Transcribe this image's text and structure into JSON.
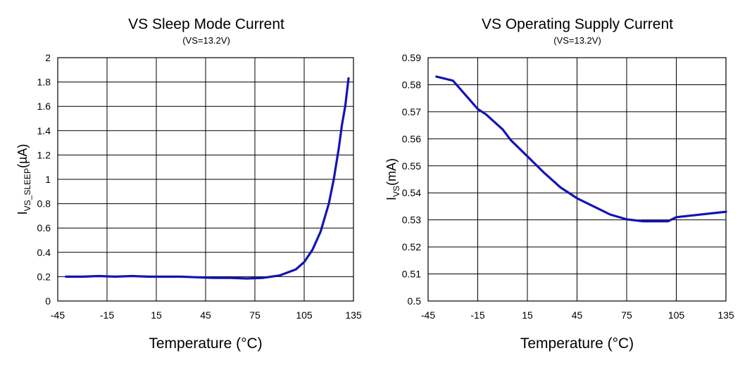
{
  "chart_data": [
    {
      "type": "line",
      "title": "VS Sleep Mode Current",
      "subtitle": "(VS=13.2V)",
      "xlabel": "Temperature (°C)",
      "ylabel": {
        "main": "I",
        "sub": "VS_SLEEP",
        "unit": "(µA)"
      },
      "xlim": [
        -45,
        135
      ],
      "ylim": [
        0,
        2
      ],
      "xticks": [
        -45,
        -15,
        15,
        45,
        75,
        105,
        135
      ],
      "xtick_labels": [
        "-45",
        "-15",
        "15",
        "45",
        "75",
        "105",
        "135"
      ],
      "x_gridlines": [
        -45,
        -15,
        15,
        45,
        75,
        105,
        135
      ],
      "yticks": [
        0,
        0.2,
        0.4,
        0.6,
        0.8,
        1,
        1.2,
        1.4,
        1.6,
        1.8,
        2
      ],
      "ytick_labels": [
        "0",
        "0.2",
        "0.4",
        "0.6",
        "0.8",
        "1",
        "1.2",
        "1.4",
        "1.6",
        "1.8",
        "2"
      ],
      "grid": true,
      "series": [
        {
          "name": "IVS_SLEEP",
          "color": "#1414b4",
          "x": [
            -40,
            -30,
            -20,
            -10,
            0,
            10,
            20,
            30,
            40,
            50,
            60,
            70,
            80,
            90,
            100,
            105,
            110,
            115,
            120,
            123,
            126,
            128,
            130,
            132
          ],
          "y": [
            0.2,
            0.2,
            0.205,
            0.2,
            0.205,
            0.2,
            0.2,
            0.2,
            0.195,
            0.19,
            0.19,
            0.185,
            0.19,
            0.21,
            0.26,
            0.32,
            0.42,
            0.57,
            0.8,
            1.0,
            1.25,
            1.45,
            1.6,
            1.83
          ]
        }
      ]
    },
    {
      "type": "line",
      "title": "VS Operating Supply Current",
      "subtitle": "(VS=13.2V)",
      "xlabel": "Temperature (°C)",
      "ylabel": {
        "main": "I",
        "sub": "VS",
        "unit": "(mA)"
      },
      "xlim": [
        -45,
        135
      ],
      "ylim": [
        0.5,
        0.59
      ],
      "xticks": [
        -45,
        -15,
        15,
        45,
        75,
        105,
        135
      ],
      "xtick_labels": [
        "-45",
        "-15",
        "15",
        "45",
        "75",
        "105",
        "135"
      ],
      "x_gridlines": [
        -45,
        -15,
        15,
        45,
        75,
        105,
        135
      ],
      "yticks": [
        0.5,
        0.51,
        0.52,
        0.53,
        0.54,
        0.55,
        0.56,
        0.57,
        0.58,
        0.59
      ],
      "ytick_labels": [
        "0.5",
        "0.51",
        "0.52",
        "0.53",
        "0.54",
        "0.55",
        "0.56",
        "0.57",
        "0.58",
        "0.59"
      ],
      "grid": true,
      "series": [
        {
          "name": "IVS",
          "color": "#1414b4",
          "x": [
            -40,
            -30,
            -25,
            -20,
            -15,
            -10,
            0,
            5,
            15,
            25,
            35,
            45,
            55,
            65,
            75,
            85,
            95,
            100,
            105,
            135
          ],
          "y": [
            0.583,
            0.5815,
            0.578,
            0.5745,
            0.571,
            0.569,
            0.5635,
            0.5595,
            0.5535,
            0.5475,
            0.542,
            0.538,
            0.535,
            0.532,
            0.5302,
            0.5295,
            0.5295,
            0.5295,
            0.531,
            0.533
          ]
        }
      ]
    }
  ]
}
